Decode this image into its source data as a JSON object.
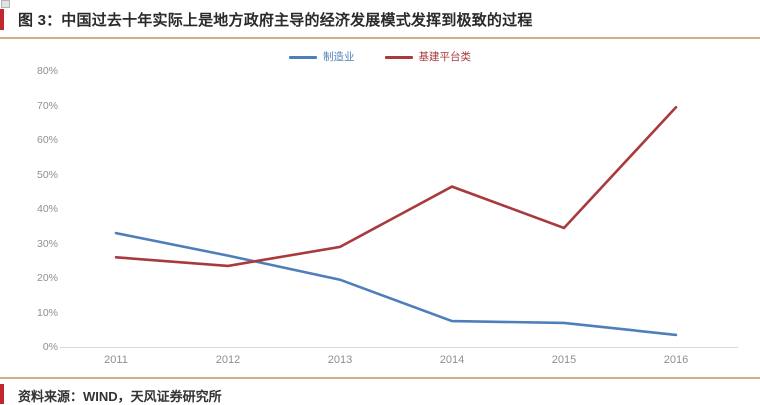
{
  "header": {
    "title": "图 3：中国过去十年实际上是地方政府主导的经济发展模式发挥到极致的过程"
  },
  "legend": {
    "position": "top-center",
    "items": [
      {
        "label": "制造业",
        "color": "#4e7fba"
      },
      {
        "label": "基建平台类",
        "color": "#a93a3c"
      }
    ]
  },
  "chart_data": {
    "type": "line",
    "title": "",
    "xlabel": "",
    "ylabel": "",
    "x": [
      2011,
      2012,
      2013,
      2014,
      2015,
      2016
    ],
    "series": [
      {
        "name": "制造业",
        "color": "#4e7fba",
        "values": [
          33,
          26.5,
          19.5,
          7.5,
          7,
          3.5
        ]
      },
      {
        "name": "基建平台类",
        "color": "#a93a3c",
        "values": [
          26,
          23.5,
          29,
          46.5,
          34.5,
          69.5
        ]
      }
    ],
    "unit": "%",
    "ylim": [
      0,
      80
    ],
    "ytick_step": 10,
    "ytick_labels": [
      "0%",
      "10%",
      "20%",
      "30%",
      "40%",
      "50%",
      "60%",
      "70%",
      "80%"
    ],
    "grid": false,
    "legend_position": "top-center"
  },
  "footer": {
    "source": "资料来源：WIND，天风证券研究所"
  },
  "colors": {
    "accent_bar": "#c0282f",
    "divider": "#cdb287",
    "axis_line": "#d8d8d8",
    "tick_text": "#8f8f8f",
    "title_text": "#2a2a2a",
    "series_blue": "#4e7fba",
    "series_red": "#a93a3c"
  }
}
